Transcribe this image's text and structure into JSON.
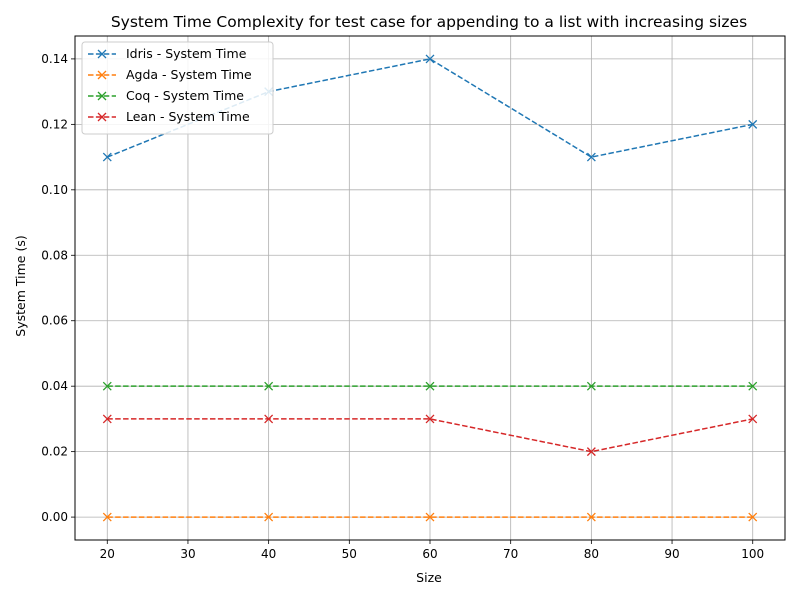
{
  "chart_data": {
    "type": "line",
    "title": "System Time Complexity for test case for appending to a list with increasing sizes",
    "xlabel": "Size",
    "ylabel": "System Time (s)",
    "x": [
      20,
      40,
      60,
      80,
      100
    ],
    "xlim": [
      16,
      104
    ],
    "ylim": [
      -0.007,
      0.147
    ],
    "xticks": [
      20,
      30,
      40,
      50,
      60,
      70,
      80,
      90,
      100
    ],
    "yticks": [
      0.0,
      0.02,
      0.04,
      0.06,
      0.08,
      0.1,
      0.12,
      0.14
    ],
    "xtick_labels": [
      "20",
      "30",
      "40",
      "50",
      "60",
      "70",
      "80",
      "90",
      "100"
    ],
    "ytick_labels": [
      "0.00",
      "0.02",
      "0.04",
      "0.06",
      "0.08",
      "0.10",
      "0.12",
      "0.14"
    ],
    "grid": true,
    "legend_position": "top-left",
    "line_style": "dashed",
    "marker": "x",
    "series": [
      {
        "name": "Idris - System Time",
        "color": "#1f77b4",
        "values": [
          0.11,
          0.13,
          0.14,
          0.11,
          0.12
        ]
      },
      {
        "name": "Agda - System Time",
        "color": "#ff7f0e",
        "values": [
          0.0,
          0.0,
          0.0,
          0.0,
          0.0
        ]
      },
      {
        "name": "Coq - System Time",
        "color": "#2ca02c",
        "values": [
          0.04,
          0.04,
          0.04,
          0.04,
          0.04
        ]
      },
      {
        "name": "Lean - System Time",
        "color": "#d62728",
        "values": [
          0.03,
          0.03,
          0.03,
          0.02,
          0.03
        ]
      }
    ]
  }
}
